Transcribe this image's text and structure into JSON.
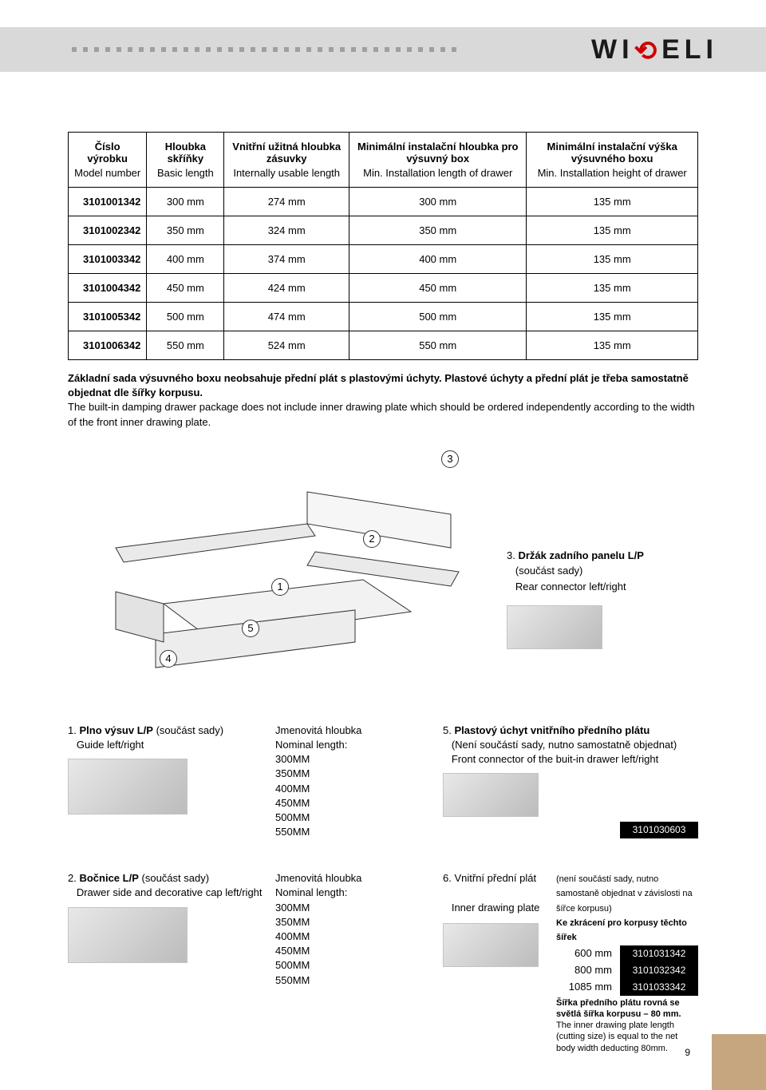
{
  "brand": "WIRELI",
  "table": {
    "headers": [
      {
        "cz": "Číslo výrobku",
        "en": "Model number"
      },
      {
        "cz": "Hloubka skříňky",
        "en": "Basic length"
      },
      {
        "cz": "Vnitřní užitná hloubka zásuvky",
        "en": "Internally usable length"
      },
      {
        "cz": "Minimální instalační hloubka pro výsuvný box",
        "en": "Min. Installation length of drawer"
      },
      {
        "cz": "Minimální instalační výška výsuvného boxu",
        "en": "Min. Installation height of drawer"
      }
    ],
    "rows": [
      [
        "3101001342",
        "300 mm",
        "274 mm",
        "300 mm",
        "135 mm"
      ],
      [
        "3101002342",
        "350 mm",
        "324 mm",
        "350 mm",
        "135 mm"
      ],
      [
        "3101003342",
        "400 mm",
        "374 mm",
        "400 mm",
        "135 mm"
      ],
      [
        "3101004342",
        "450 mm",
        "424 mm",
        "450 mm",
        "135 mm"
      ],
      [
        "3101005342",
        "500 mm",
        "474 mm",
        "500 mm",
        "135 mm"
      ],
      [
        "3101006342",
        "550 mm",
        "524 mm",
        "550 mm",
        "135 mm"
      ]
    ]
  },
  "note": {
    "cz": "Základní sada výsuvného boxu neobsahuje přední plát s plastovými úchyty. Plastové úchyty a přední plát je třeba samostatně objednat dle šířky korpusu.",
    "en": "The built-in damping drawer package does not include inner drawing plate which should be ordered independently according to the width of the front inner drawing plate."
  },
  "callouts": {
    "1": "1",
    "2": "2",
    "3": "3",
    "4": "4",
    "5": "5"
  },
  "part3": {
    "num": "3.",
    "cz": "Držák zadního panelu L/P",
    "paren": "(součást sady)",
    "en": "Rear connector  left/right"
  },
  "part1": {
    "num": "1.",
    "cz": "Plno výsuv L/P",
    "paren": "(součást sady)",
    "en": "Guide  left/right"
  },
  "nominal": {
    "cz": "Jmenovitá hloubka",
    "en": "Nominal length:",
    "list": [
      "300MM",
      "350MM",
      "400MM",
      "450MM",
      "500MM",
      "550MM"
    ]
  },
  "part5": {
    "num": "5.",
    "cz": "Plastový úchyt vnitřního předního plátu",
    "paren": "(Není součástí sady, nutno samostatně objednat)",
    "en": "Front connector of the buit-in drawer  left/right",
    "code": "3101030603"
  },
  "part2": {
    "num": "2.",
    "cz": "Bočnice L/P",
    "paren": "(součást sady)",
    "en": "Drawer side and decorative cap  left/right"
  },
  "part6": {
    "num": "6.",
    "cz": "Vnitřní přední plát",
    "en": "Inner drawing plate",
    "note_cz": "(není součástí sady, nutno samostaně objednat v závislosti na šířce korpusu)",
    "sub_cz": "Ke zkrácení pro korpusy těchto šířek",
    "widths": [
      {
        "mm": "600 mm",
        "code": "3101031342"
      },
      {
        "mm": "800 mm",
        "code": "3101032342"
      },
      {
        "mm": "1085 mm",
        "code": "3101033342"
      }
    ],
    "foot_cz": "Šířka předního plátu rovná se světlá šířka korpusu – 80 mm.",
    "foot_en": "The inner drawing plate length (cutting size) is equal to the net body width deducting 80mm."
  },
  "page": "9"
}
